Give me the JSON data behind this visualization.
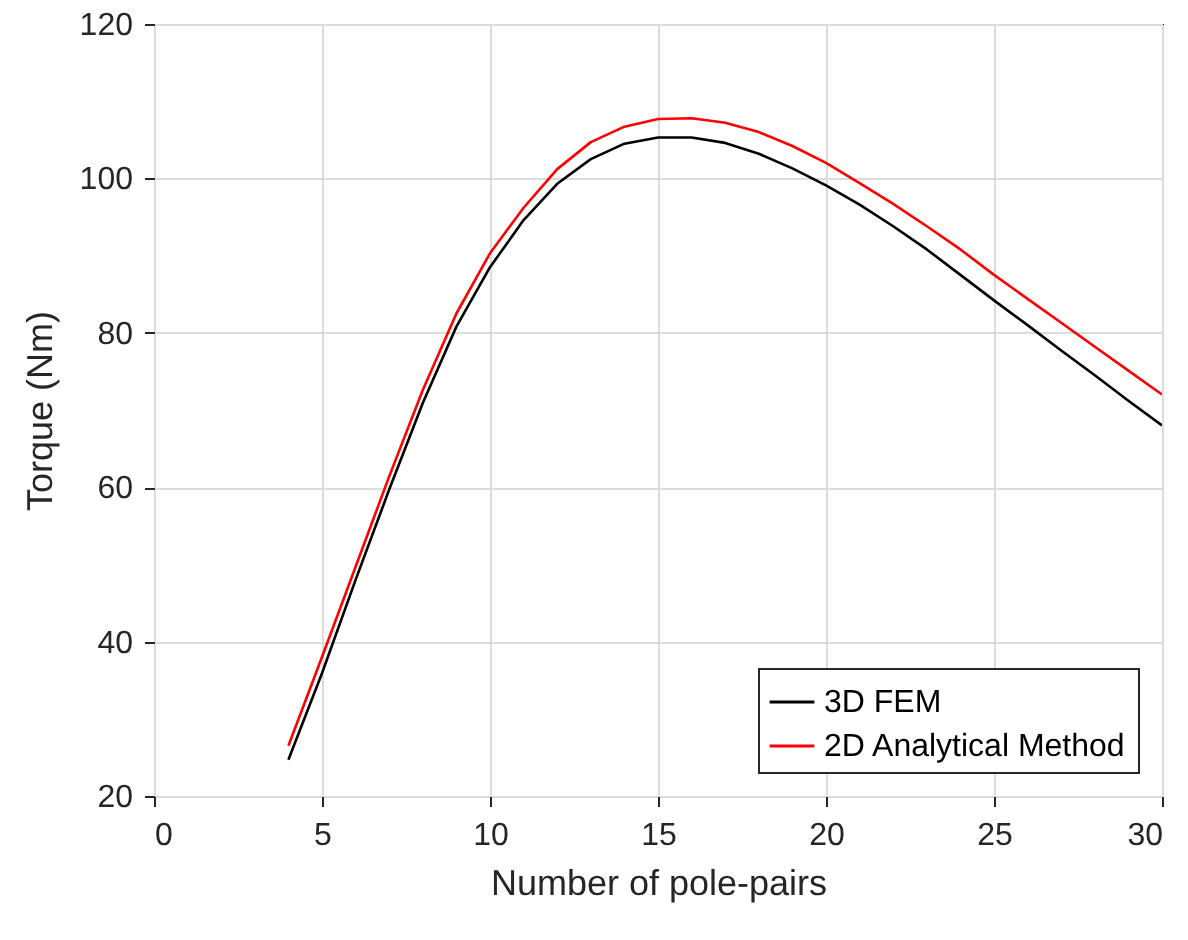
{
  "chart_data": {
    "type": "line",
    "xlabel": "Number of pole-pairs",
    "ylabel": "Torque (Nm)",
    "x": [
      4,
      5,
      6,
      7,
      8,
      9,
      10,
      11,
      12,
      13,
      14,
      15,
      16,
      17,
      18,
      19,
      20,
      21,
      22,
      23,
      24,
      25,
      26,
      27,
      28,
      29,
      30
    ],
    "series": [
      {
        "name": "3D FEM",
        "color": "#000000",
        "values": [
          24.7,
          35.9,
          48.0,
          59.7,
          70.9,
          80.8,
          88.5,
          94.6,
          99.3,
          102.5,
          104.5,
          105.3,
          105.3,
          104.6,
          103.2,
          101.3,
          99.1,
          96.6,
          93.8,
          90.8,
          87.5,
          84.2,
          81.0,
          77.7,
          74.5,
          71.2,
          68.0
        ]
      },
      {
        "name": "2D Analytical Method",
        "color": "#ff0000",
        "values": [
          26.5,
          38.0,
          49.7,
          61.4,
          72.6,
          82.5,
          90.3,
          96.2,
          101.2,
          104.7,
          106.7,
          107.7,
          107.8,
          107.2,
          106.0,
          104.2,
          102.0,
          99.4,
          96.7,
          93.8,
          90.8,
          87.5,
          84.4,
          81.3,
          78.2,
          75.1,
          72.0
        ]
      }
    ],
    "xlim": [
      0,
      30
    ],
    "xticks": [
      0,
      5,
      10,
      15,
      20,
      25,
      30
    ],
    "ylim": [
      20,
      120
    ],
    "yticks": [
      20,
      40,
      60,
      80,
      100,
      120
    ],
    "grid": true,
    "legend": "bottom right"
  }
}
